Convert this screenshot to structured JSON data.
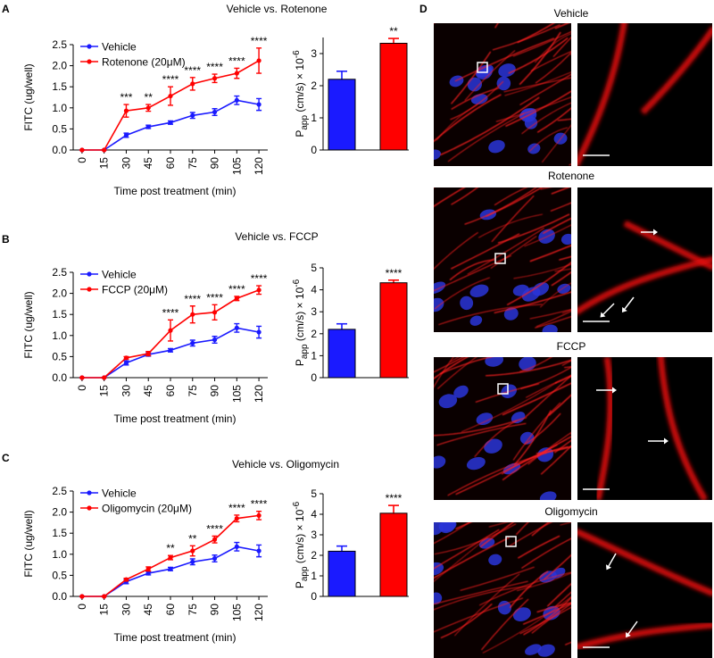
{
  "panel_labels": [
    "A",
    "B",
    "C",
    "D"
  ],
  "images": [
    {
      "title": "Vehicle"
    },
    {
      "title": "Rotenone"
    },
    {
      "title": "FCCP"
    },
    {
      "title": "Oligomycin"
    }
  ],
  "chart_data": [
    {
      "type": "line",
      "title": "Vehicle vs. Rotenone",
      "xlabel": "Time post treatment (min)",
      "ylabel": "FITC (ug/well)",
      "x": [
        0,
        15,
        30,
        45,
        60,
        75,
        90,
        105,
        120
      ],
      "xlim": [
        -6,
        126
      ],
      "xticks": [
        0,
        15,
        30,
        45,
        60,
        75,
        90,
        105,
        120
      ],
      "ylim": [
        0,
        2.5
      ],
      "yticks": [
        {
          "value": 0,
          "label": "0.0"
        },
        0.5,
        {
          "value": 1,
          "label": "1.0"
        },
        1.5,
        {
          "value": 2,
          "label": "2.0"
        },
        2.5
      ],
      "legend": "upper left",
      "series": [
        {
          "name": "Vehicle",
          "color": "#1a1aff",
          "values": [
            0,
            0,
            0.35,
            0.55,
            0.65,
            0.82,
            0.9,
            1.18,
            1.08
          ],
          "errors": [
            0,
            0,
            0.05,
            0.04,
            0.04,
            0.07,
            0.08,
            0.1,
            0.14
          ]
        },
        {
          "name": "Rotenone (20μM)",
          "color": "#ff0000",
          "values": [
            0,
            0,
            0.93,
            1.0,
            1.28,
            1.57,
            1.7,
            1.82,
            2.12
          ],
          "errors": [
            0,
            0,
            0.15,
            0.08,
            0.22,
            0.15,
            0.1,
            0.12,
            0.3
          ]
        }
      ],
      "significance": [
        null,
        null,
        "***",
        "**",
        "****",
        "****",
        "****",
        "****",
        "****"
      ]
    },
    {
      "type": "bar",
      "ylabel": {
        "main": "P",
        "sub": "app",
        "mid": " (cm/s) × 10",
        "sup": "-6"
      },
      "ylim": [
        0,
        3.5
      ],
      "yticks": [
        0,
        1,
        2,
        3
      ],
      "values": [
        2.2,
        3.32
      ],
      "errors": [
        0.25,
        0.15
      ],
      "colors": [
        "#1a1aff",
        "#ff0000"
      ],
      "significance": [
        null,
        "**"
      ]
    },
    {
      "type": "line",
      "title": "Vehicle vs. FCCP",
      "xlabel": "Time post treatment (min)",
      "ylabel": "FITC (ug/well)",
      "x": [
        0,
        15,
        30,
        45,
        60,
        75,
        90,
        105,
        120
      ],
      "xlim": [
        -6,
        126
      ],
      "xticks": [
        0,
        15,
        30,
        45,
        60,
        75,
        90,
        105,
        120
      ],
      "ylim": [
        0,
        2.5
      ],
      "yticks": [
        {
          "value": 0,
          "label": "0.0"
        },
        0.5,
        {
          "value": 1,
          "label": "1.0"
        },
        1.5,
        {
          "value": 2,
          "label": "2.0"
        },
        2.5
      ],
      "legend": "upper left",
      "series": [
        {
          "name": "Vehicle",
          "color": "#1a1aff",
          "values": [
            0,
            0,
            0.35,
            0.55,
            0.65,
            0.82,
            0.9,
            1.18,
            1.08
          ],
          "errors": [
            0,
            0,
            0.05,
            0.04,
            0.04,
            0.07,
            0.08,
            0.1,
            0.14
          ]
        },
        {
          "name": "FCCP (20μM)",
          "color": "#ff0000",
          "values": [
            0,
            0,
            0.47,
            0.57,
            1.12,
            1.5,
            1.55,
            1.88,
            2.08
          ],
          "errors": [
            0,
            0,
            0.03,
            0.05,
            0.25,
            0.2,
            0.18,
            0.05,
            0.1
          ]
        }
      ],
      "significance": [
        null,
        null,
        null,
        null,
        "****",
        "****",
        "****",
        "****",
        "****"
      ]
    },
    {
      "type": "bar",
      "ylabel": {
        "main": "P",
        "sub": "app",
        "mid": " (cm/s) × 10",
        "sup": "-6"
      },
      "ylim": [
        0,
        5
      ],
      "yticks": [
        0,
        1,
        2,
        3,
        4,
        5
      ],
      "values": [
        2.2,
        4.32
      ],
      "errors": [
        0.25,
        0.12
      ],
      "colors": [
        "#1a1aff",
        "#ff0000"
      ],
      "significance": [
        null,
        "****"
      ]
    },
    {
      "type": "line",
      "title": "Vehicle vs. Oligomycin",
      "xlabel": "Time post treatment (min)",
      "ylabel": "FITC (ug/well)",
      "x": [
        0,
        15,
        30,
        45,
        60,
        75,
        90,
        105,
        120
      ],
      "xlim": [
        -6,
        126
      ],
      "xticks": [
        0,
        15,
        30,
        45,
        60,
        75,
        90,
        105,
        120
      ],
      "ylim": [
        0,
        2.5
      ],
      "yticks": [
        {
          "value": 0,
          "label": "0.0"
        },
        0.5,
        {
          "value": 1,
          "label": "1.0"
        },
        1.5,
        {
          "value": 2,
          "label": "2.0"
        },
        2.5
      ],
      "legend": "upper left",
      "series": [
        {
          "name": "Vehicle",
          "color": "#1a1aff",
          "values": [
            0,
            0,
            0.35,
            0.55,
            0.65,
            0.82,
            0.9,
            1.18,
            1.08
          ],
          "errors": [
            0,
            0,
            0.05,
            0.04,
            0.04,
            0.07,
            0.08,
            0.1,
            0.14
          ]
        },
        {
          "name": "Oligomycin (20μM)",
          "color": "#ff0000",
          "values": [
            0,
            0,
            0.4,
            0.65,
            0.92,
            1.08,
            1.35,
            1.85,
            1.92
          ],
          "errors": [
            0,
            0,
            0.03,
            0.05,
            0.05,
            0.12,
            0.08,
            0.08,
            0.1
          ]
        }
      ],
      "significance": [
        null,
        null,
        null,
        null,
        "**",
        "**",
        "****",
        "****",
        "****"
      ]
    },
    {
      "type": "bar",
      "ylabel": {
        "main": "P",
        "sub": "app",
        "mid": " (cm/s) × 10",
        "sup": "-6"
      },
      "ylim": [
        0,
        5
      ],
      "yticks": [
        0,
        1,
        2,
        3,
        4,
        5
      ],
      "values": [
        2.2,
        4.05
      ],
      "errors": [
        0.25,
        0.38
      ],
      "colors": [
        "#1a1aff",
        "#ff0000"
      ],
      "significance": [
        null,
        "****"
      ]
    }
  ]
}
